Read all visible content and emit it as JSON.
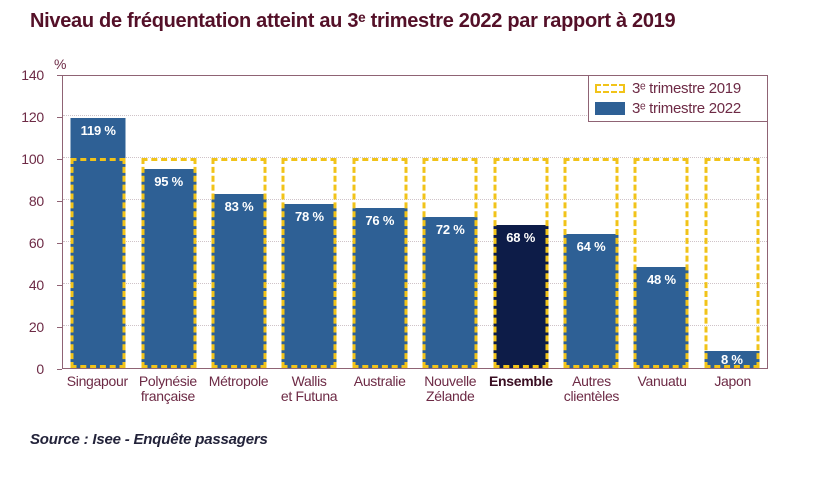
{
  "title": {
    "text": "Niveau de fréquentation atteint au 3ᵉ trimestre 2022 par rapport à 2019"
  },
  "source": {
    "text": "Source : Isee - Enquête passagers"
  },
  "chart_data": {
    "type": "bar",
    "title": "Niveau de fréquentation atteint au 3ᵉ trimestre 2022 par rapport à 2019",
    "ylabel": "%",
    "ylim": [
      0,
      140
    ],
    "yticks": [
      0,
      20,
      40,
      60,
      80,
      100,
      120,
      140
    ],
    "grid": "horizontal-dotted",
    "legend_position": "top-right",
    "reference_value": 100,
    "categories": [
      "Singapour",
      "Polynésie\nfrançaise",
      "Métropole",
      "Wallis\net Futuna",
      "Australie",
      "Nouvelle\nZélande",
      "Ensemble",
      "Autres\nclientèles",
      "Vanuatu",
      "Japon"
    ],
    "values": [
      119,
      95,
      83,
      78,
      76,
      72,
      68,
      64,
      48,
      8
    ],
    "value_labels": [
      "119 %",
      "95 %",
      "83 %",
      "78 %",
      "76 %",
      "72 %",
      "68 %",
      "64 %",
      "48 %",
      "8 %"
    ],
    "highlight_index": 6,
    "legend": [
      {
        "label": "3ᵉ trimestre 2019",
        "swatch": "dashed-yellow-outline"
      },
      {
        "label": "3ᵉ trimestre 2022",
        "swatch": "solid-blue"
      }
    ],
    "colors": {
      "bar": "#2e6095",
      "bar_highlight": "#0d1c48",
      "reference_dash": "#f1c319",
      "title_text": "#541028",
      "axis_text": "#6d2a45",
      "plot_border": "#8f6374",
      "gridline": "#cfc3c8",
      "bar_label_text": "#ffffff",
      "source_text": "#23233a"
    }
  }
}
